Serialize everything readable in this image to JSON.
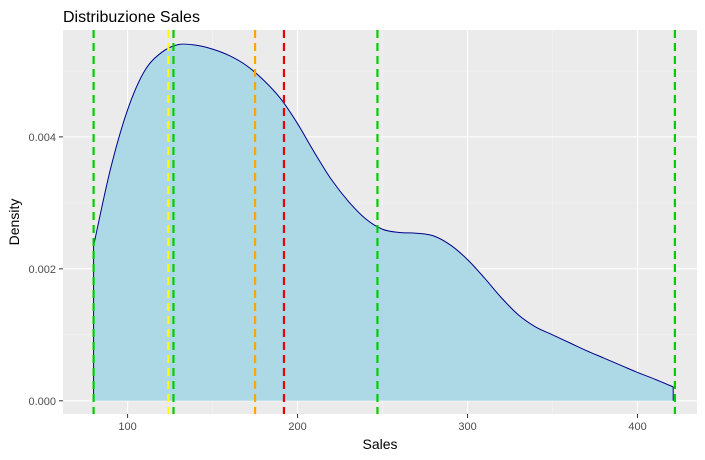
{
  "chart_data": {
    "type": "area",
    "title": "Distribuzione Sales",
    "xlabel": "Sales",
    "ylabel": "Density",
    "xlim": [
      62,
      435
    ],
    "ylim": [
      -0.0002,
      0.00562
    ],
    "x_ticks": [
      100,
      200,
      300,
      400
    ],
    "x_tick_labels": [
      "100",
      "200",
      "300",
      "400"
    ],
    "y_ticks": [
      0.0,
      0.002,
      0.004
    ],
    "y_tick_labels": [
      "0.000",
      "0.002",
      "0.004"
    ],
    "grid": true,
    "series": [
      {
        "x": [
          80,
          90,
          100,
          110,
          120,
          130,
          140,
          150,
          160,
          170,
          180,
          190,
          200,
          210,
          220,
          230,
          240,
          250,
          260,
          270,
          280,
          290,
          300,
          310,
          320,
          330,
          340,
          350,
          360,
          370,
          380,
          390,
          400,
          410,
          421
        ],
        "y": [
          0.00235,
          0.00352,
          0.00441,
          0.005,
          0.00528,
          0.0054,
          0.00539,
          0.00533,
          0.00523,
          0.00508,
          0.00486,
          0.00458,
          0.0042,
          0.00376,
          0.00335,
          0.00302,
          0.00276,
          0.0026,
          0.00255,
          0.00254,
          0.0025,
          0.00236,
          0.00214,
          0.00186,
          0.00156,
          0.0013,
          0.00112,
          0.001,
          0.00088,
          0.00076,
          0.00065,
          0.00054,
          0.00043,
          0.00033,
          0.00021
        ]
      }
    ],
    "vlines": [
      {
        "x": 80,
        "color": "#00cd00"
      },
      {
        "x": 124,
        "color": "#ffff00"
      },
      {
        "x": 127,
        "color": "#00cd00"
      },
      {
        "x": 175,
        "color": "#ffa500"
      },
      {
        "x": 192,
        "color": "#ee0000"
      },
      {
        "x": 247,
        "color": "#00cd00"
      },
      {
        "x": 422,
        "color": "#00cd00"
      }
    ],
    "colors": {
      "fill": "#add8e6",
      "outline": "#00008b",
      "panel_background": "#ebebeb",
      "grid_major": "#ffffff",
      "grid_minor": "#f5f5f5",
      "tick_text": "#4d4d4d"
    }
  }
}
